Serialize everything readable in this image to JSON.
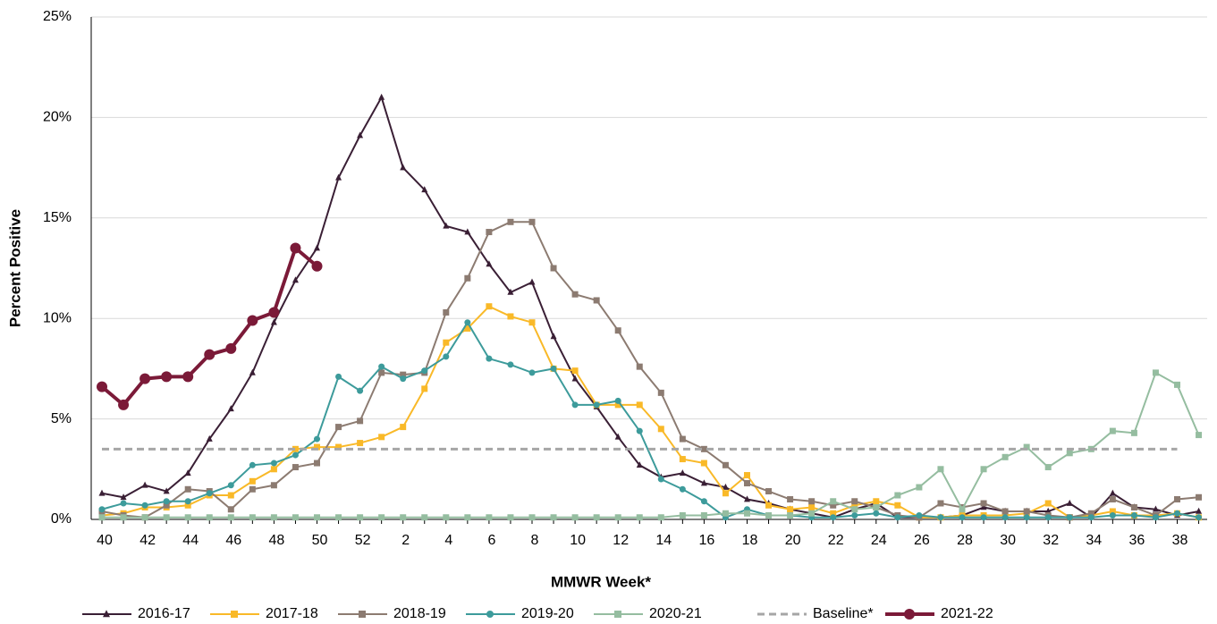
{
  "chart_data": {
    "type": "line",
    "x_label": "MMWR Week*",
    "y_label": "Percent Positive",
    "categories": [
      40,
      null,
      42,
      null,
      44,
      null,
      46,
      null,
      48,
      null,
      50,
      null,
      52,
      null,
      2,
      null,
      4,
      null,
      6,
      null,
      8,
      null,
      10,
      null,
      12,
      null,
      14,
      null,
      16,
      null,
      18,
      null,
      20,
      null,
      22,
      null,
      24,
      null,
      26,
      null,
      28,
      null,
      30,
      null,
      32,
      null,
      34,
      null,
      36,
      null,
      38,
      null
    ],
    "ylim": [
      0,
      25
    ],
    "yticks": [
      {
        "value": 0,
        "label": "0%"
      },
      {
        "value": 5,
        "label": "5%"
      },
      {
        "value": 10,
        "label": "10%"
      },
      {
        "value": 15,
        "label": "15%"
      },
      {
        "value": 20,
        "label": "20%"
      },
      {
        "value": 25,
        "label": "25%"
      }
    ],
    "grid": true,
    "legend": "bottom",
    "series": [
      {
        "name": "2016-17",
        "color": "#3a1f35",
        "marker": "triangle",
        "values": [
          1.3,
          1.1,
          1.7,
          1.4,
          2.3,
          4.0,
          5.5,
          7.3,
          9.8,
          11.9,
          13.5,
          17.0,
          19.1,
          21.0,
          17.5,
          16.4,
          14.6,
          14.3,
          12.7,
          11.3,
          11.8,
          9.1,
          7.0,
          5.6,
          4.1,
          2.7,
          2.1,
          2.3,
          1.8,
          1.6,
          1.0,
          0.8,
          0.5,
          0.3,
          0.1,
          0.5,
          0.8,
          0.1,
          0.1,
          0.1,
          0.2,
          0.6,
          0.4,
          0.4,
          0.4,
          0.8,
          0.1,
          1.3,
          0.6,
          0.5,
          0.2,
          0.4
        ]
      },
      {
        "name": "2017-18",
        "color": "#f9b928",
        "marker": "square",
        "values": [
          0.2,
          0.3,
          0.6,
          0.6,
          0.7,
          1.2,
          1.2,
          1.9,
          2.5,
          3.5,
          3.6,
          3.6,
          3.8,
          4.1,
          4.6,
          6.5,
          8.8,
          9.5,
          10.6,
          10.1,
          9.8,
          7.5,
          7.4,
          5.7,
          5.7,
          5.7,
          4.5,
          3.0,
          2.8,
          1.3,
          2.2,
          0.7,
          0.5,
          0.6,
          0.3,
          0.7,
          0.9,
          0.7,
          0.1,
          0.1,
          0.2,
          0.2,
          0.2,
          0.3,
          0.8,
          0.1,
          0.2,
          0.4,
          0.2,
          0.2,
          0.3,
          0.1
        ]
      },
      {
        "name": "2018-19",
        "color": "#8c7b71",
        "marker": "square",
        "values": [
          0.4,
          0.2,
          0.1,
          0.7,
          1.5,
          1.4,
          0.5,
          1.5,
          1.7,
          2.6,
          2.8,
          4.6,
          4.9,
          7.3,
          7.2,
          7.3,
          10.3,
          12.0,
          14.3,
          14.8,
          14.8,
          12.5,
          11.2,
          10.9,
          9.4,
          7.6,
          6.3,
          4.0,
          3.5,
          2.7,
          1.8,
          1.4,
          1.0,
          0.9,
          0.7,
          0.9,
          0.6,
          0.2,
          0.1,
          0.8,
          0.6,
          0.8,
          0.4,
          0.4,
          0.2,
          0.1,
          0.3,
          1.0,
          0.6,
          0.2,
          1.0,
          1.1
        ]
      },
      {
        "name": "2019-20",
        "color": "#3d9b9b",
        "marker": "circle",
        "values": [
          0.5,
          0.8,
          0.7,
          0.9,
          0.9,
          1.3,
          1.7,
          2.7,
          2.8,
          3.2,
          4.0,
          7.1,
          6.4,
          7.6,
          7.0,
          7.4,
          8.1,
          9.8,
          8.0,
          7.7,
          7.3,
          7.5,
          5.7,
          5.7,
          5.9,
          4.4,
          2.0,
          1.5,
          0.9,
          0.1,
          0.5,
          0.2,
          0.2,
          0.1,
          0.1,
          0.2,
          0.3,
          0.1,
          0.2,
          0.1,
          0.1,
          0.1,
          0.1,
          0.1,
          0.1,
          0.1,
          0.1,
          0.2,
          0.2,
          0.1,
          0.3,
          0.1
        ]
      },
      {
        "name": "2020-21",
        "color": "#95bda0",
        "marker": "square",
        "values": [
          0.1,
          0.1,
          0.1,
          0.1,
          0.1,
          0.1,
          0.1,
          0.1,
          0.1,
          0.1,
          0.1,
          0.1,
          0.1,
          0.1,
          0.1,
          0.1,
          0.1,
          0.1,
          0.1,
          0.1,
          0.1,
          0.1,
          0.1,
          0.1,
          0.1,
          0.1,
          0.1,
          0.2,
          0.2,
          0.3,
          0.3,
          0.2,
          0.2,
          0.3,
          0.9,
          0.5,
          0.6,
          1.2,
          1.6,
          2.5,
          0.5,
          2.5,
          3.1,
          3.6,
          2.6,
          3.3,
          3.5,
          4.4,
          4.3,
          7.3,
          6.7,
          4.2
        ]
      },
      {
        "name": "Baseline*",
        "color": "#a6a6a6",
        "marker": "none",
        "dashed": true,
        "values": [
          3.5,
          3.5,
          3.5,
          3.5,
          3.5,
          3.5,
          3.5,
          3.5,
          3.5,
          3.5,
          3.5,
          3.5,
          3.5,
          3.5,
          3.5,
          3.5,
          3.5,
          3.5,
          3.5,
          3.5,
          3.5,
          3.5,
          3.5,
          3.5,
          3.5,
          3.5,
          3.5,
          3.5,
          3.5,
          3.5,
          3.5,
          3.5,
          3.5,
          3.5,
          3.5,
          3.5,
          3.5,
          3.5,
          3.5,
          3.5,
          3.5,
          3.5,
          3.5,
          3.5,
          3.5,
          3.5,
          3.5,
          3.5,
          3.5,
          3.5,
          3.5,
          null
        ]
      },
      {
        "name": "2021-22",
        "color": "#7b1a38",
        "marker": "circle",
        "width": 4,
        "values": [
          6.6,
          5.7,
          7.0,
          7.1,
          7.1,
          8.2,
          8.5,
          9.9,
          10.3,
          13.5,
          12.6,
          null,
          null,
          null,
          null,
          null,
          null,
          null,
          null,
          null,
          null,
          null,
          null,
          null,
          null,
          null,
          null,
          null,
          null,
          null,
          null,
          null,
          null,
          null,
          null,
          null,
          null,
          null,
          null,
          null,
          null,
          null,
          null,
          null,
          null,
          null,
          null,
          null,
          null,
          null,
          null,
          null
        ]
      }
    ]
  }
}
